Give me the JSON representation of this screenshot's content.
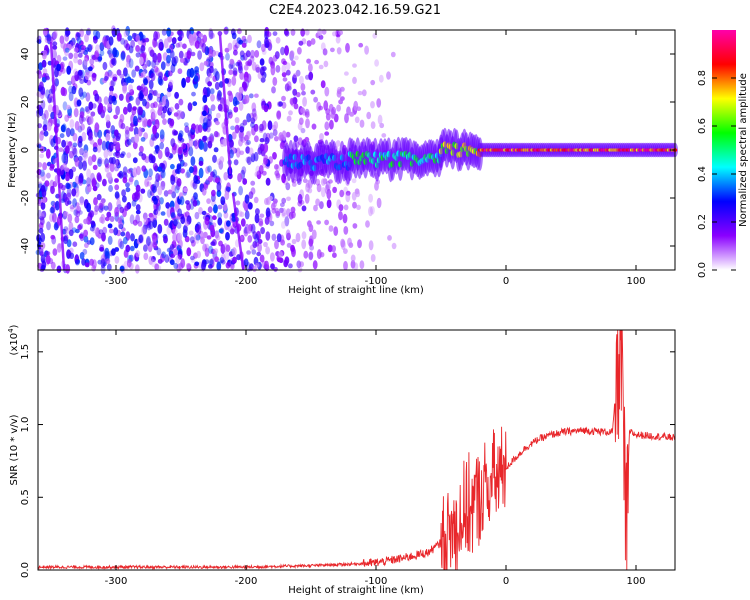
{
  "title": "C2E4.2023.042.16.59.G21",
  "chart_data": [
    {
      "type": "heatmap",
      "xlabel": "Height of straight line (km)",
      "ylabel": "Frequency (Hz)",
      "xlim": [
        -360,
        130
      ],
      "ylim": [
        -50,
        50
      ],
      "x_ticks": [
        -300,
        -200,
        -100,
        0,
        100
      ],
      "y_ticks": [
        -40,
        -20,
        0,
        20,
        40
      ],
      "colorbar": {
        "label": "Normalized spectral amplitude",
        "range": [
          0,
          1
        ],
        "ticks": [
          "0.0",
          "0.2",
          "0.4",
          "0.6",
          "0.8"
        ],
        "colormap": [
          "#ffffff",
          "#8a00ff",
          "#0000ff",
          "#00ffff",
          "#00ff00",
          "#ffff00",
          "#ff0000",
          "#ff00aa"
        ]
      },
      "signal": {
        "segments": [
          {
            "x_start": -170,
            "x_end": -120,
            "frequency": -5,
            "amplitude": 0.4
          },
          {
            "x_start": -120,
            "x_end": -50,
            "frequency": -4,
            "amplitude": 0.55
          },
          {
            "x_start": -50,
            "x_end": -20,
            "frequency": 0,
            "amplitude": 0.75
          },
          {
            "x_start": -20,
            "x_end": 130,
            "frequency": 0,
            "amplitude": 0.95
          }
        ],
        "noise_region": [
          -360,
          -100
        ]
      }
    },
    {
      "type": "line",
      "xlabel": "Height of straight line (km)",
      "ylabel": "SNR (10 * v/v)",
      "y_multiplier": "(x10",
      "y_multiplier_exp": "4",
      "xlim": [
        -360,
        130
      ],
      "ylim": [
        0,
        1.65
      ],
      "x_ticks": [
        -300,
        -200,
        -100,
        0,
        100
      ],
      "y_ticks": [
        "0.0",
        "0.5",
        "1.0",
        "1.5"
      ],
      "color": "#e8262a",
      "series": [
        {
          "x": [
            -360,
            -300,
            -250,
            -200,
            -150,
            -120,
            -100,
            -80,
            -60,
            -45,
            -35,
            -25,
            -15,
            -5,
            5,
            15,
            25,
            35,
            45,
            60,
            75,
            82,
            86,
            88,
            90,
            92,
            95,
            100,
            115,
            130
          ],
          "values": [
            0.02,
            0.02,
            0.02,
            0.02,
            0.03,
            0.04,
            0.05,
            0.08,
            0.12,
            0.22,
            0.35,
            0.45,
            0.55,
            0.65,
            0.75,
            0.84,
            0.9,
            0.93,
            0.95,
            0.96,
            0.95,
            0.95,
            1.4,
            1.62,
            1.2,
            0.1,
            0.95,
            0.93,
            0.92,
            0.91
          ]
        }
      ]
    }
  ]
}
